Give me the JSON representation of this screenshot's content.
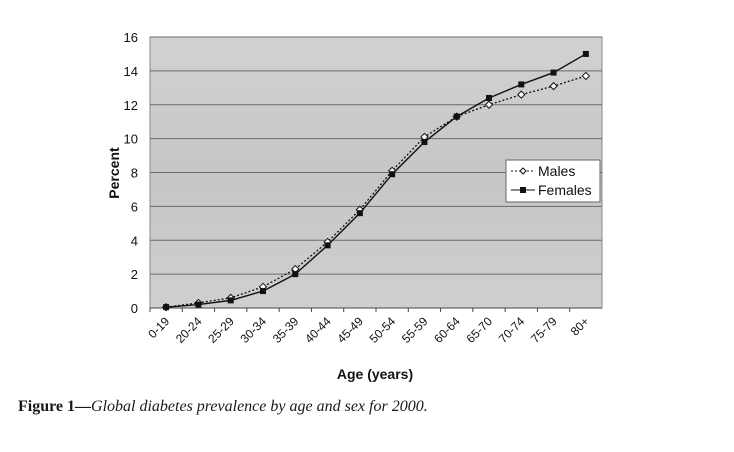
{
  "chart_data": {
    "type": "line",
    "title": "",
    "xlabel": "Age (years)",
    "ylabel": "Percent",
    "ylim": [
      0,
      16
    ],
    "yticks": [
      0,
      2,
      4,
      6,
      8,
      10,
      12,
      14,
      16
    ],
    "grid": true,
    "legend_position": "right",
    "categories": [
      "0-19",
      "20-24",
      "25-29",
      "30-34",
      "35-39",
      "40-44",
      "45-49",
      "50-54",
      "55-59",
      "60-64",
      "65-70",
      "70-74",
      "75-79",
      "80+"
    ],
    "series": [
      {
        "name": "Males",
        "style": "dotted-open-diamond",
        "values": [
          0.05,
          0.3,
          0.6,
          1.25,
          2.3,
          3.9,
          5.8,
          8.1,
          10.1,
          11.3,
          12.0,
          12.6,
          13.1,
          13.7
        ]
      },
      {
        "name": "Females",
        "style": "solid-filled-square",
        "values": [
          0.05,
          0.2,
          0.45,
          1.0,
          2.0,
          3.7,
          5.6,
          7.9,
          9.8,
          11.3,
          12.4,
          13.2,
          13.9,
          15.0
        ]
      }
    ]
  },
  "caption": {
    "label": "Figure 1—",
    "text": "Global diabetes prevalence by age and sex for 2000."
  }
}
